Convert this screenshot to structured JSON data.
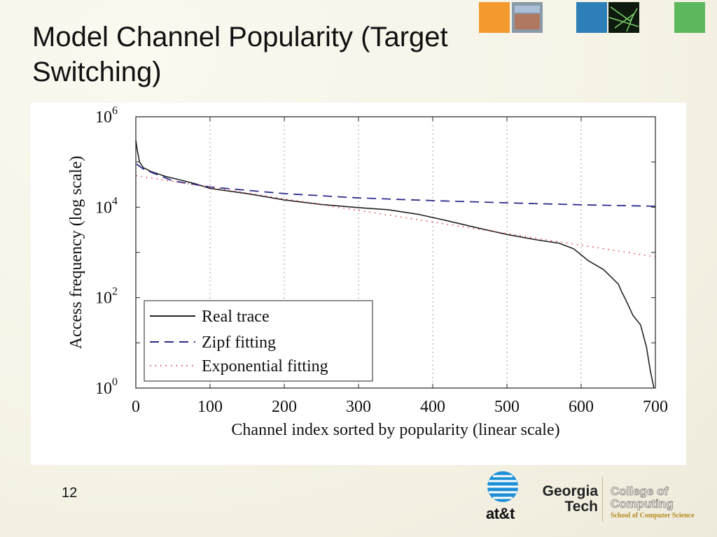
{
  "slide": {
    "title": "Model Channel Popularity (Target Switching)",
    "page_number": "12"
  },
  "logos": {
    "att": "at&t",
    "georgia_tech": [
      "Georgia",
      "Tech"
    ],
    "college": [
      "College of",
      "Computing"
    ],
    "school": "School of Computer Science"
  },
  "colors": {
    "real_trace": "#222222",
    "zipf": "#2b2b8c",
    "exponential": "#e0404a",
    "grid": "#a0a0a0"
  },
  "chart_data": {
    "type": "line",
    "xlabel": "Channel index sorted by popularity (linear scale)",
    "ylabel": "Access frequency (log scale)",
    "y_scale": "log",
    "xlim": [
      0,
      700
    ],
    "ylim": [
      1,
      1000000
    ],
    "x_ticks": [
      0,
      100,
      200,
      300,
      400,
      500,
      600,
      700
    ],
    "y_ticks": [
      {
        "base": "10",
        "exp": "0",
        "value": 1
      },
      {
        "base": "10",
        "exp": "2",
        "value": 100
      },
      {
        "base": "10",
        "exp": "4",
        "value": 10000
      },
      {
        "base": "10",
        "exp": "6",
        "value": 1000000
      }
    ],
    "grid": "vertical dotted",
    "legend": "bottom-left",
    "series": [
      {
        "name": "Real trace",
        "style": "solid",
        "points": [
          [
            0,
            300000
          ],
          [
            2,
            180000
          ],
          [
            5,
            100000
          ],
          [
            10,
            75000
          ],
          [
            20,
            62000
          ],
          [
            40,
            48000
          ],
          [
            60,
            40000
          ],
          [
            80,
            33000
          ],
          [
            100,
            26000
          ],
          [
            150,
            20000
          ],
          [
            200,
            14500
          ],
          [
            250,
            11500
          ],
          [
            300,
            9800
          ],
          [
            340,
            8800
          ],
          [
            380,
            7000
          ],
          [
            420,
            5000
          ],
          [
            460,
            3500
          ],
          [
            500,
            2500
          ],
          [
            540,
            1900
          ],
          [
            570,
            1600
          ],
          [
            590,
            1200
          ],
          [
            610,
            650
          ],
          [
            630,
            420
          ],
          [
            650,
            200
          ],
          [
            655,
            130
          ],
          [
            660,
            90
          ],
          [
            670,
            40
          ],
          [
            680,
            25
          ],
          [
            688,
            8
          ],
          [
            693,
            2.5
          ],
          [
            698,
            1
          ]
        ]
      },
      {
        "name": "Zipf fitting",
        "style": "dashed",
        "points": [
          [
            1,
            90000
          ],
          [
            10,
            70000
          ],
          [
            50,
            38000
          ],
          [
            100,
            28000
          ],
          [
            200,
            20000
          ],
          [
            300,
            16000
          ],
          [
            400,
            14000
          ],
          [
            500,
            12500
          ],
          [
            600,
            11300
          ],
          [
            700,
            10500
          ]
        ]
      },
      {
        "name": "Exponential fitting",
        "style": "dotted",
        "points": [
          [
            0,
            50000
          ],
          [
            700,
            800
          ]
        ]
      }
    ]
  }
}
